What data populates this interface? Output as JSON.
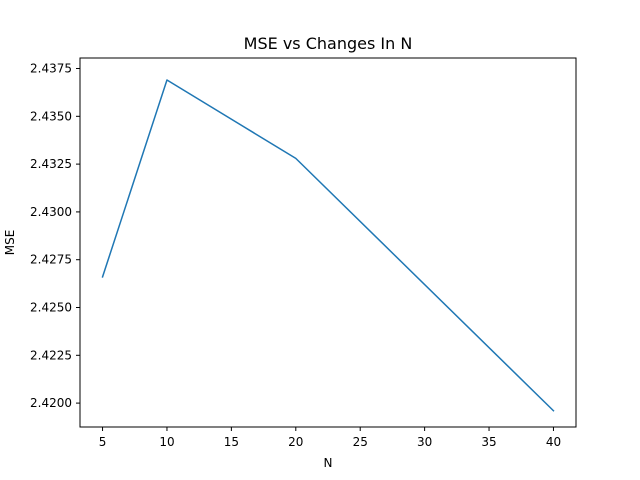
{
  "chart_data": {
    "type": "line",
    "title": "MSE vs Changes In N",
    "xlabel": "N",
    "ylabel": "MSE",
    "xlim": [
      3.25,
      41.75
    ],
    "ylim": [
      2.41875,
      2.43805
    ],
    "xticks": [
      5,
      10,
      15,
      20,
      25,
      30,
      35,
      40
    ],
    "xtick_labels": [
      "5",
      "10",
      "15",
      "20",
      "25",
      "30",
      "35",
      "40"
    ],
    "yticks": [
      2.42,
      2.4225,
      2.425,
      2.4275,
      2.43,
      2.4325,
      2.435,
      2.4375
    ],
    "ytick_labels": [
      "2.4200",
      "2.4225",
      "2.4250",
      "2.4275",
      "2.4300",
      "2.4325",
      "2.4350",
      "2.4375"
    ],
    "grid": false,
    "series": [
      {
        "color": "#1f77b4",
        "x": [
          5,
          10,
          20,
          40
        ],
        "y": [
          2.4266,
          2.4369,
          2.4328,
          2.4196
        ]
      }
    ]
  }
}
